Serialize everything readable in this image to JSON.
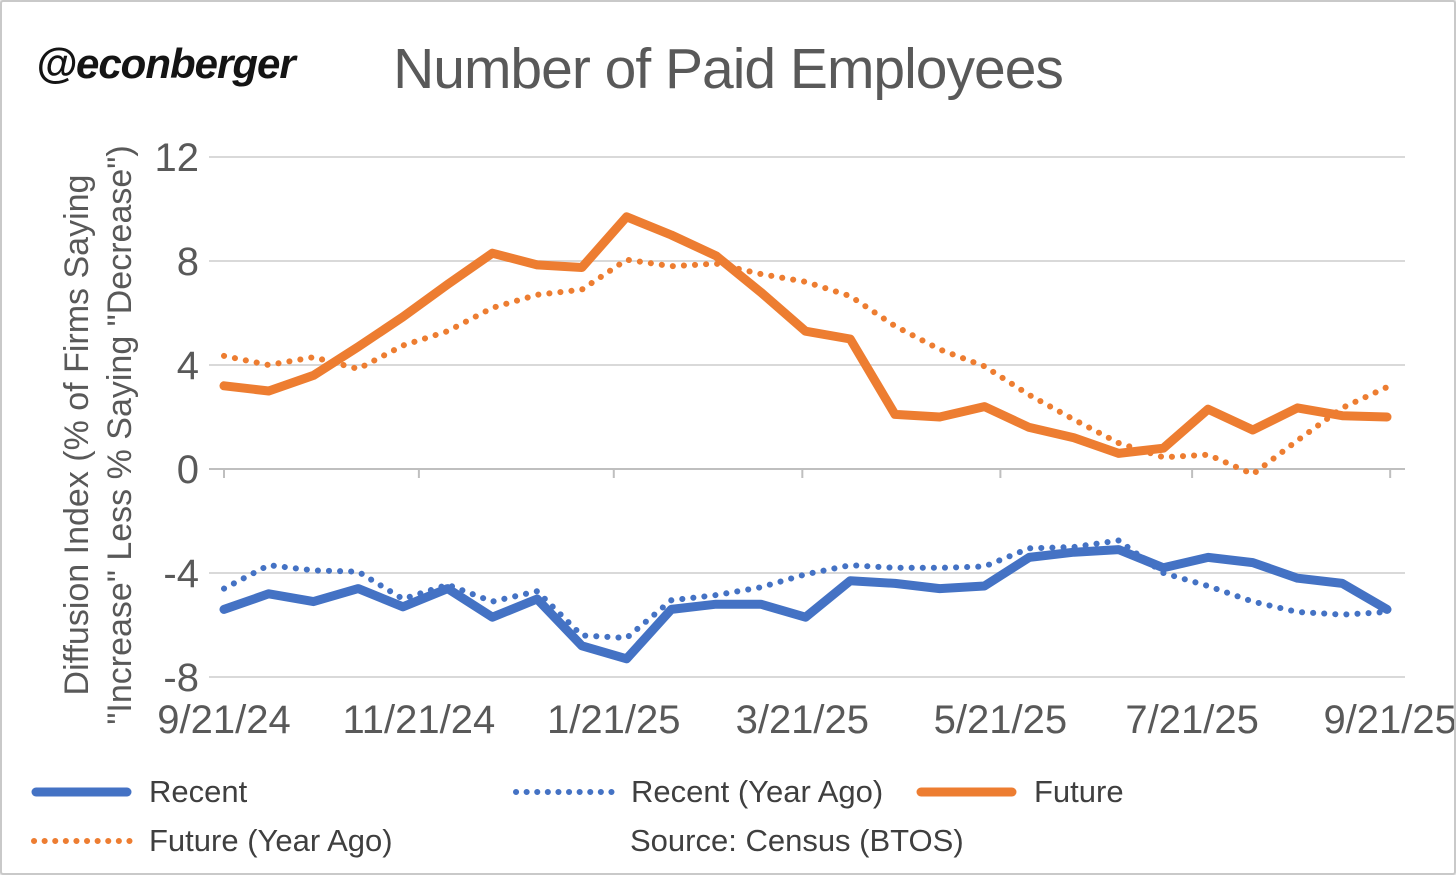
{
  "watermark": "@econberger",
  "title": "Number of Paid Employees",
  "y_axis": {
    "title_line1": "Diffusion Index (% of Firms Saying",
    "title_line2": "\"Increase\" Less % Saying \"Decrease\")",
    "ticks": [
      12,
      8,
      4,
      0,
      -4,
      -8
    ]
  },
  "x_axis": {
    "ticks": [
      {
        "label": "9/21/24",
        "pos": 0
      },
      {
        "label": "11/21/24",
        "pos": 4.357
      },
      {
        "label": "1/21/25",
        "pos": 8.714
      },
      {
        "label": "3/21/25",
        "pos": 12.929
      },
      {
        "label": "5/21/25",
        "pos": 17.357
      },
      {
        "label": "7/21/25",
        "pos": 21.643
      },
      {
        "label": "9/21/25",
        "pos": 26.071
      }
    ]
  },
  "chart_data": {
    "type": "line",
    "title": "Number of Paid Employees",
    "xlabel": "",
    "ylabel": "Diffusion Index (% of Firms Saying \"Increase\" Less % Saying \"Decrease\")",
    "ylim": [
      -8,
      12
    ],
    "grid": true,
    "legend_position": "bottom",
    "x_tick_labels": [
      "9/21/24",
      "11/21/24",
      "1/21/25",
      "3/21/25",
      "5/21/25",
      "7/21/25",
      "9/21/25"
    ],
    "x_note": "27 biweekly survey points from 9/21/24 to 9/21/25",
    "series": [
      {
        "name": "Recent",
        "color": "#4472C4",
        "style": "solid",
        "values": [
          -5.4,
          -4.8,
          -5.1,
          -4.6,
          -5.3,
          -4.6,
          -5.7,
          -5.0,
          -6.8,
          -7.3,
          -5.4,
          -5.2,
          -5.2,
          -5.7,
          -4.3,
          -4.4,
          -4.6,
          -4.5,
          -3.4,
          -3.2,
          -3.1,
          -3.8,
          -3.4,
          -3.6,
          -4.2,
          -4.4,
          -5.4
        ]
      },
      {
        "name": "Recent (Year Ago)",
        "color": "#4472C4",
        "style": "dotted",
        "values": [
          -4.6,
          -3.7,
          -3.9,
          -3.95,
          -5.0,
          -4.45,
          -5.1,
          -4.7,
          -6.4,
          -6.5,
          -5.05,
          -4.85,
          -4.55,
          -4.05,
          -3.7,
          -3.8,
          -3.8,
          -3.75,
          -3.05,
          -3.0,
          -2.75,
          -4.0,
          -4.5,
          -5.1,
          -5.5,
          -5.6,
          -5.5
        ]
      },
      {
        "name": "Future",
        "color": "#ED7D31",
        "style": "solid",
        "values": [
          3.2,
          3.0,
          3.6,
          4.7,
          5.85,
          7.1,
          8.3,
          7.85,
          7.75,
          9.7,
          9.0,
          8.2,
          6.8,
          5.3,
          5.0,
          2.1,
          2.0,
          2.4,
          1.6,
          1.2,
          0.6,
          0.8,
          2.3,
          1.5,
          2.35,
          2.05,
          2.0
        ]
      },
      {
        "name": "Future (Year Ago)",
        "color": "#ED7D31",
        "style": "dotted",
        "values": [
          4.35,
          4.0,
          4.3,
          3.85,
          4.75,
          5.3,
          6.2,
          6.7,
          6.9,
          8.05,
          7.8,
          7.9,
          7.5,
          7.2,
          6.65,
          5.5,
          4.6,
          3.95,
          2.85,
          1.9,
          1.0,
          0.45,
          0.55,
          -0.2,
          1.1,
          2.35,
          3.15
        ]
      }
    ]
  },
  "legend": {
    "items": [
      {
        "label": "Recent"
      },
      {
        "label": "Recent (Year Ago)"
      },
      {
        "label": "Future"
      },
      {
        "label": "Future (Year Ago)"
      }
    ],
    "source": "Source: Census (BTOS)"
  },
  "colors": {
    "accent_blue": "#4472C4",
    "accent_orange": "#ED7D31",
    "gridline": "#D9D9D9",
    "axis_line": "#BFBFBF",
    "text_gray": "#595959"
  }
}
